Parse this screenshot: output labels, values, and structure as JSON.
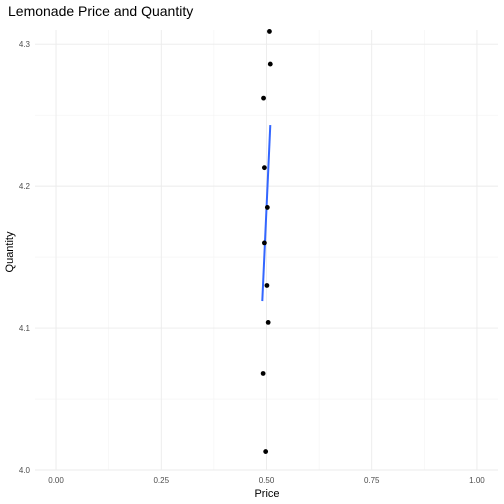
{
  "chart_data": {
    "type": "scatter",
    "title": "Lemonade Price and Quantity",
    "xlabel": "Price",
    "ylabel": "Quantity",
    "xlim": [
      -0.05,
      1.05
    ],
    "ylim": [
      4.0,
      4.31
    ],
    "x_ticks": [
      "0.00",
      "0.25",
      "0.50",
      "0.75",
      "1.00"
    ],
    "x_tick_values": [
      0.0,
      0.25,
      0.5,
      0.75,
      1.0
    ],
    "y_ticks": [
      "4.0",
      "4.1",
      "4.2",
      "4.3"
    ],
    "y_tick_values": [
      4.0,
      4.1,
      4.2,
      4.3
    ],
    "grid": true,
    "points": [
      {
        "x": 0.507,
        "y": 4.309
      },
      {
        "x": 0.509,
        "y": 4.286
      },
      {
        "x": 0.493,
        "y": 4.262
      },
      {
        "x": 0.495,
        "y": 4.213
      },
      {
        "x": 0.502,
        "y": 4.185
      },
      {
        "x": 0.495,
        "y": 4.16
      },
      {
        "x": 0.501,
        "y": 4.13
      },
      {
        "x": 0.504,
        "y": 4.104
      },
      {
        "x": 0.492,
        "y": 4.068
      },
      {
        "x": 0.498,
        "y": 4.013
      }
    ],
    "trend_line": {
      "x": [
        0.49,
        0.509
      ],
      "y": [
        4.119,
        4.243
      ],
      "color": "#3366ff"
    },
    "point_color": "#000000"
  }
}
